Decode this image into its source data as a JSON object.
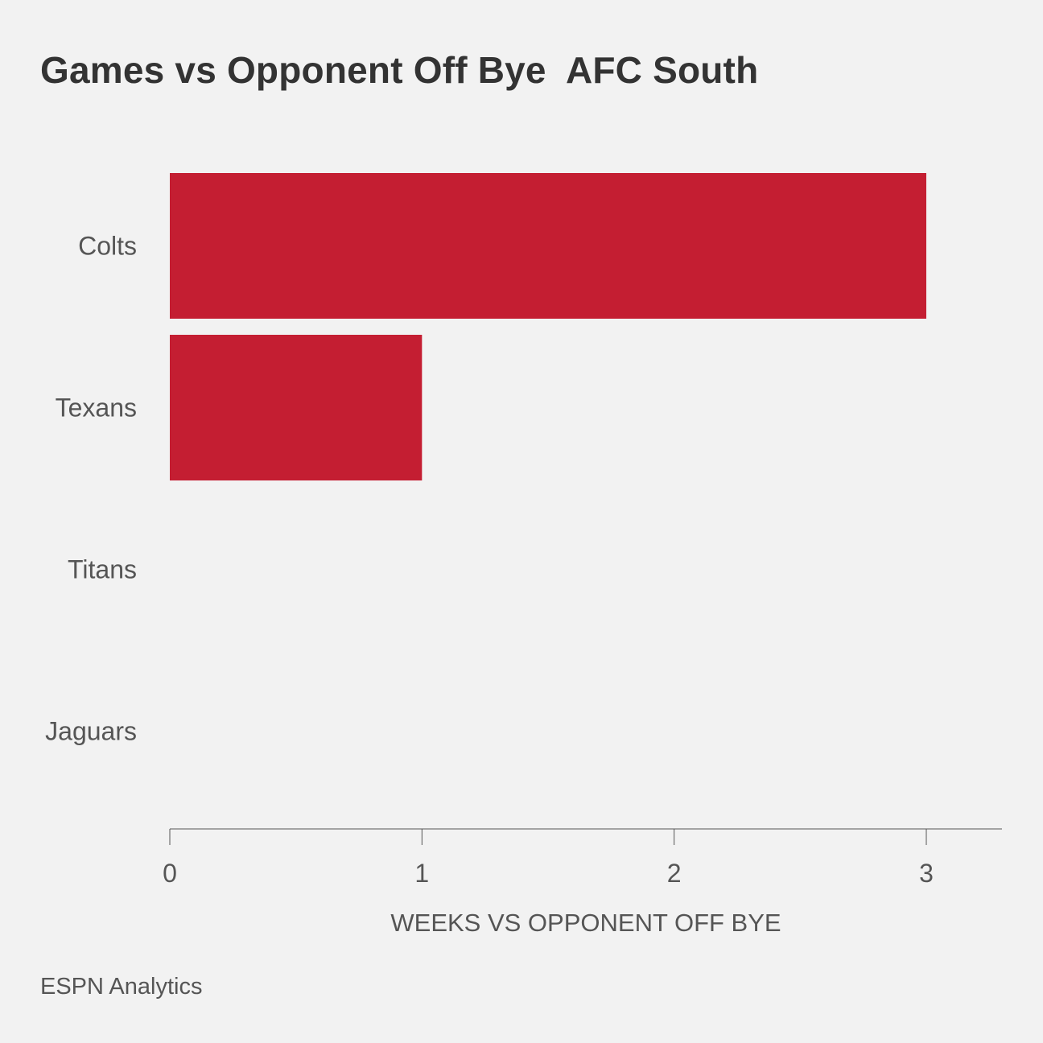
{
  "chart_data": {
    "type": "bar",
    "orientation": "horizontal",
    "title": "Games vs Opponent Off Bye  AFC South",
    "categories": [
      "Colts",
      "Texans",
      "Titans",
      "Jaguars"
    ],
    "values": [
      3,
      1,
      0,
      0
    ],
    "xlabel": "WEEKS VS OPPONENT OFF BYE",
    "ylabel": "",
    "xlim": [
      0,
      3.3
    ],
    "xticks": [
      "0",
      "1",
      "2",
      "3"
    ],
    "grid": false,
    "bar_color": "#c41e32"
  },
  "source": "ESPN Analytics"
}
